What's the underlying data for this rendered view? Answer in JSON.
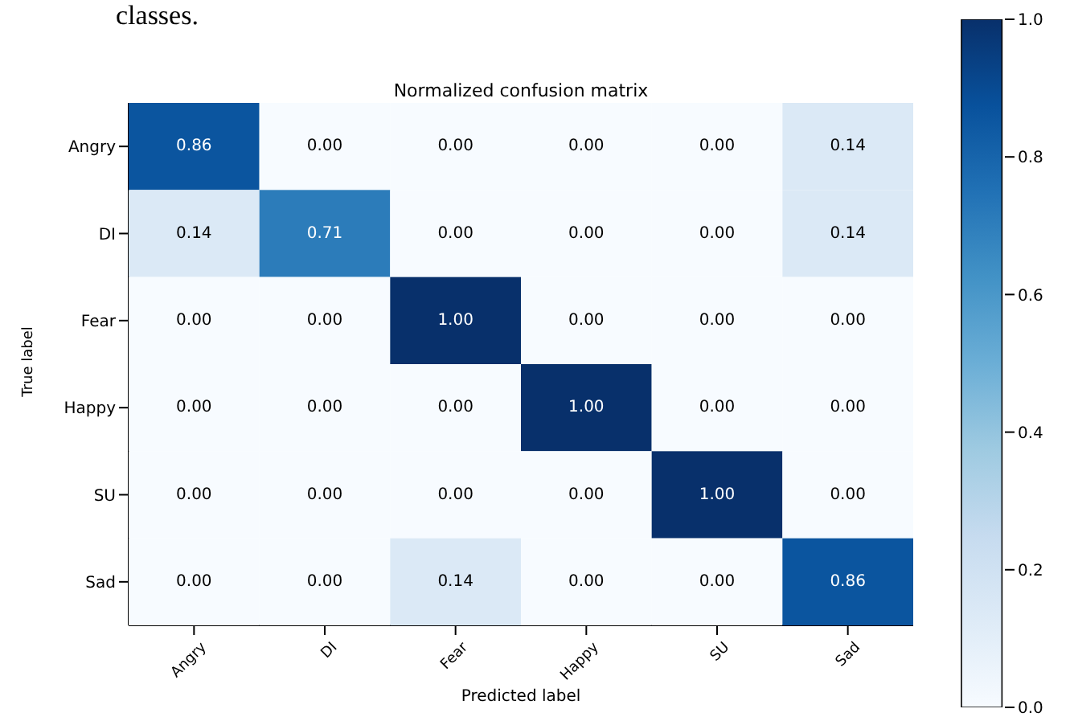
{
  "chart_data": {
    "type": "heatmap",
    "title": "Normalized confusion matrix",
    "xlabel": "Predicted label",
    "ylabel": "True label",
    "annotations": [
      "classes."
    ],
    "categories": [
      "Angry",
      "DI",
      "Fear",
      "Happy",
      "SU",
      "Sad"
    ],
    "y_categories": [
      "Angry",
      "DI",
      "Fear",
      "Happy",
      "SU",
      "Sad"
    ],
    "cells": [
      [
        0.86,
        0,
        0,
        0,
        0,
        0.14
      ],
      [
        0.14,
        0.71,
        0,
        0,
        0,
        0.14
      ],
      [
        0,
        0,
        1,
        0,
        0,
        0
      ],
      [
        0,
        0,
        0,
        1,
        0,
        0
      ],
      [
        0,
        0,
        0,
        0,
        1,
        0
      ],
      [
        0,
        0,
        0.14,
        0,
        0,
        0.86
      ]
    ],
    "cell_labels": [
      [
        "0.86",
        "0.00",
        "0.00",
        "0.00",
        "0.00",
        "0.14"
      ],
      [
        "0.14",
        "0.71",
        "0.00",
        "0.00",
        "0.00",
        "0.14"
      ],
      [
        "0.00",
        "0.00",
        "1.00",
        "0.00",
        "0.00",
        "0.00"
      ],
      [
        "0.00",
        "0.00",
        "0.00",
        "1.00",
        "0.00",
        "0.00"
      ],
      [
        "0.00",
        "0.00",
        "0.00",
        "0.00",
        "1.00",
        "0.00"
      ],
      [
        "0.00",
        "0.00",
        "0.14",
        "0.00",
        "0.00",
        "0.86"
      ]
    ],
    "clim": [
      0,
      1
    ],
    "cticks": [
      {
        "value": 0,
        "label": "0.0"
      },
      {
        "value": 0.2,
        "label": "0.2"
      },
      {
        "value": 0.4,
        "label": "0.4"
      },
      {
        "value": 0.6,
        "label": "0.6"
      },
      {
        "value": 0.8,
        "label": "0.8"
      },
      {
        "value": 1,
        "label": "1.0"
      }
    ]
  }
}
